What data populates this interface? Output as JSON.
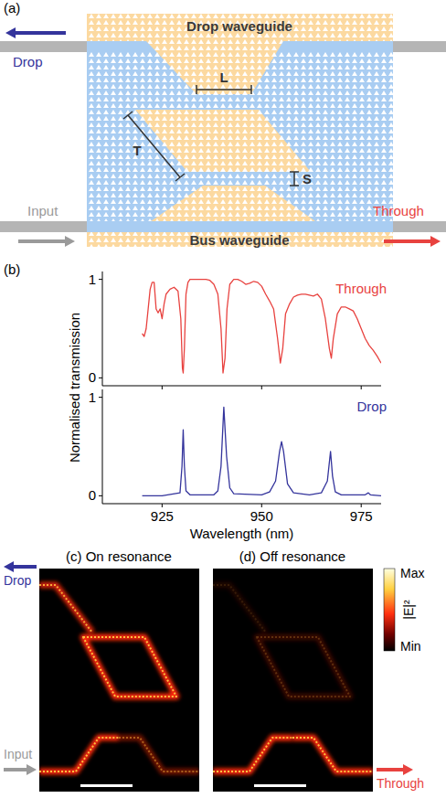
{
  "panel_a": {
    "letter": "(a)",
    "drop_waveguide": "Drop waveguide",
    "bus_waveguide": "Bus waveguide",
    "drop": "Drop",
    "input": "Input",
    "through": "Through",
    "L": "L",
    "T": "T",
    "S": "S"
  },
  "chart_data": [
    {
      "type": "line",
      "panel_label": "(b)",
      "y_label": "Normalised transmission",
      "xlim": [
        910,
        980
      ],
      "xticks": [
        925,
        950,
        975
      ],
      "ylim": [
        -0.08,
        1.08
      ],
      "yticks": [
        0,
        1
      ],
      "tick_labels": "y",
      "series": [
        {
          "name": "Through",
          "color": "#e8423f",
          "x": [
            920,
            920.5,
            921,
            921.5,
            922,
            922.5,
            923,
            923.5,
            924,
            924.5,
            925,
            925.5,
            926,
            927,
            928,
            929,
            929.7,
            930.1,
            930.3,
            930.6,
            931,
            931.5,
            932,
            934,
            936,
            937,
            938,
            939,
            939.8,
            940.3,
            940.8,
            941.3,
            942,
            943,
            944,
            945,
            946,
            947,
            948,
            949,
            950,
            951,
            952,
            953,
            954,
            954.7,
            955.3,
            956,
            957,
            958,
            959,
            960,
            961,
            962,
            963,
            964,
            965,
            966,
            967,
            967.5,
            968,
            969,
            970,
            971,
            972,
            973,
            974,
            975,
            976,
            977,
            978,
            979,
            980
          ],
          "values": [
            0.45,
            0.42,
            0.5,
            0.7,
            0.9,
            0.97,
            0.97,
            0.7,
            0.66,
            0.7,
            0.6,
            0.75,
            0.85,
            0.9,
            0.92,
            0.88,
            0.6,
            0.1,
            0.05,
            0.3,
            0.85,
            0.97,
            1.0,
            1.0,
            1.0,
            0.99,
            0.95,
            0.85,
            0.5,
            0.05,
            0.2,
            0.7,
            0.95,
            1.0,
            1.0,
            0.98,
            0.95,
            0.96,
            0.98,
            0.97,
            0.93,
            0.85,
            0.78,
            0.7,
            0.4,
            0.15,
            0.3,
            0.65,
            0.75,
            0.82,
            0.84,
            0.85,
            0.85,
            0.84,
            0.83,
            0.85,
            0.8,
            0.6,
            0.3,
            0.2,
            0.4,
            0.65,
            0.72,
            0.72,
            0.7,
            0.68,
            0.6,
            0.5,
            0.4,
            0.33,
            0.28,
            0.22,
            0.15
          ]
        }
      ]
    },
    {
      "type": "line",
      "x_label": "Wavelength (nm)",
      "xlim": [
        910,
        980
      ],
      "xticks": [
        925,
        950,
        975
      ],
      "ylim": [
        -0.08,
        1.08
      ],
      "yticks": [
        0,
        1
      ],
      "series": [
        {
          "name": "Drop",
          "color": "#34349c",
          "x": [
            920,
            925,
            929.5,
            930,
            930.3,
            930.6,
            931,
            932,
            938,
            939,
            939.8,
            940.5,
            941.2,
            942,
            943,
            950,
            952,
            953.5,
            954.5,
            955,
            955.5,
            956.5,
            958,
            962,
            965,
            966.5,
            967.3,
            967.8,
            968.5,
            970,
            976,
            976.8,
            977.3,
            980
          ],
          "values": [
            0,
            0,
            0.03,
            0.3,
            0.67,
            0.3,
            0.05,
            0.01,
            0.01,
            0.05,
            0.3,
            0.9,
            0.4,
            0.08,
            0.02,
            0.01,
            0.04,
            0.15,
            0.45,
            0.55,
            0.45,
            0.12,
            0.03,
            0.01,
            0.03,
            0.15,
            0.45,
            0.2,
            0.04,
            0.01,
            0.01,
            0.03,
            0.01,
            0
          ]
        }
      ]
    }
  ],
  "panel_c": {
    "title": "(c) On resonance"
  },
  "panel_d": {
    "title": "(d) Off resonance"
  },
  "field_labels": {
    "drop": "Drop",
    "input": "Input",
    "through": "Through"
  },
  "colorbar": {
    "max": "Max",
    "min": "Min",
    "label": "|E|²"
  }
}
